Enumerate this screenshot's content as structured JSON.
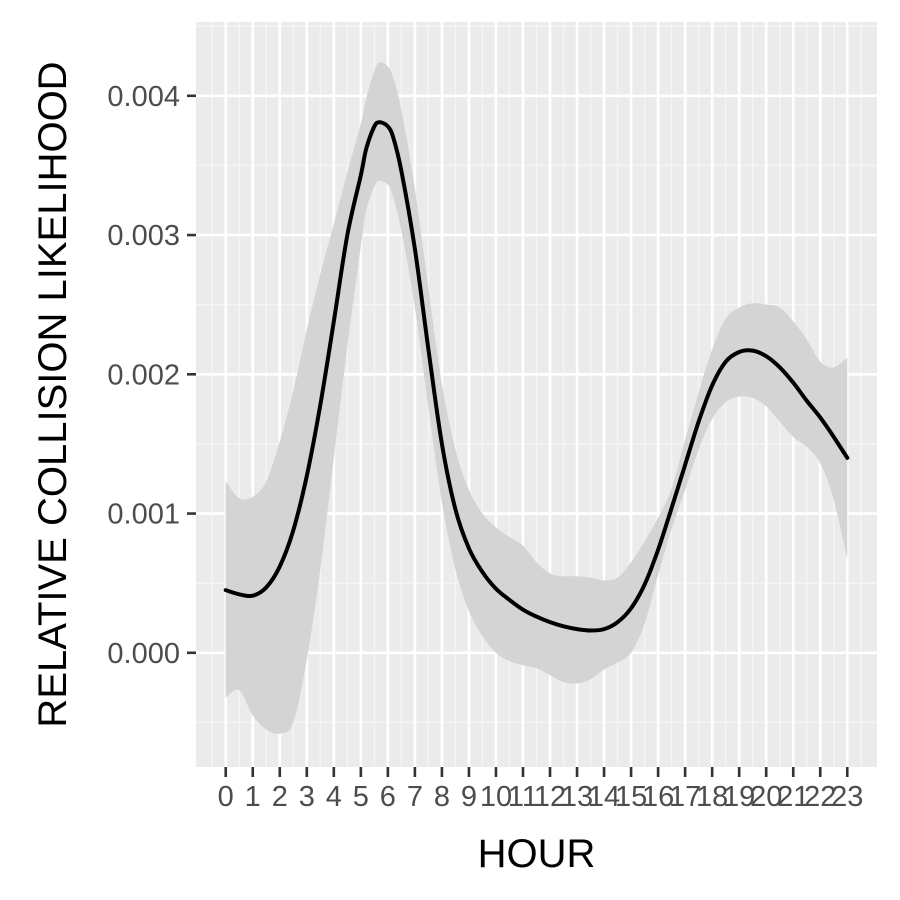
{
  "chart_data": {
    "type": "line",
    "xlabel": "HOUR",
    "ylabel": "RELATIVE COLLISION LIKELIHOOD",
    "x_ticks": [
      "0",
      "1",
      "2",
      "3",
      "4",
      "5",
      "6",
      "7",
      "8",
      "9",
      "10",
      "11",
      "12",
      "13",
      "14",
      "15",
      "16",
      "17",
      "18",
      "19",
      "20",
      "21",
      "22",
      "23"
    ],
    "y_ticks": [
      "0.000",
      "0.001",
      "0.002",
      "0.003",
      "0.004"
    ],
    "y_tick_values": [
      0.0,
      0.001,
      0.002,
      0.003,
      0.004
    ],
    "xlim": [
      -1.1,
      24.1
    ],
    "ylim": [
      -0.00082,
      0.00453
    ],
    "grid": true,
    "legend": "none",
    "colors": {
      "panel": "#ebebeb",
      "grid_major": "#ffffff",
      "grid_minor": "#f5f5f5",
      "band": "#d4d4d4",
      "line": "#000000",
      "tick": "#333333"
    },
    "series": [
      {
        "x": [
          0,
          0.5,
          1,
          1.5,
          2,
          2.5,
          3,
          3.5,
          4,
          4.5,
          5,
          5.2,
          5.5,
          5.7,
          6,
          6.2,
          6.5,
          7,
          7.5,
          8,
          8.5,
          9,
          9.5,
          10,
          10.5,
          11,
          11.5,
          12,
          12.5,
          13,
          13.5,
          14,
          14.5,
          15,
          15.5,
          16,
          16.5,
          17,
          17.5,
          18,
          18.5,
          19,
          19.5,
          20,
          20.5,
          21,
          21.5,
          22,
          22.5,
          23
        ],
        "y": [
          0.00045,
          0.00042,
          0.00041,
          0.00047,
          0.00062,
          0.00088,
          0.00127,
          0.00178,
          0.00238,
          0.003,
          0.00343,
          0.00362,
          0.00378,
          0.00381,
          0.00378,
          0.0037,
          0.00346,
          0.0029,
          0.00218,
          0.0015,
          0.00103,
          0.00075,
          0.00058,
          0.00046,
          0.00038,
          0.00031,
          0.00026,
          0.00022,
          0.00019,
          0.00017,
          0.00016,
          0.00017,
          0.00022,
          0.00032,
          0.00049,
          0.00074,
          0.00104,
          0.00135,
          0.00166,
          0.00192,
          0.00209,
          0.00216,
          0.00217,
          0.00213,
          0.00205,
          0.00194,
          0.00181,
          0.00169,
          0.00155,
          0.0014
        ],
        "lower": [
          -0.00032,
          -0.00027,
          -0.00045,
          -0.00055,
          -0.00058,
          -0.0005,
          -5e-05,
          0.0006,
          0.0014,
          0.0022,
          0.00292,
          0.00318,
          0.00335,
          0.00339,
          0.00336,
          0.00327,
          0.00303,
          0.00248,
          0.00176,
          0.00108,
          0.0006,
          0.0003,
          0.00012,
          0.0,
          -6e-05,
          -9e-05,
          -0.00011,
          -0.00016,
          -0.00021,
          -0.00022,
          -0.00019,
          -0.00012,
          -7e-05,
          0.0,
          0.00021,
          0.00056,
          0.00089,
          0.00117,
          0.00146,
          0.00168,
          0.0018,
          0.00184,
          0.00183,
          0.00177,
          0.00166,
          0.00155,
          0.00148,
          0.00136,
          0.0011,
          0.00067
        ],
        "upper": [
          0.00123,
          0.00111,
          0.00112,
          0.00123,
          0.00152,
          0.00188,
          0.00232,
          0.00272,
          0.00308,
          0.00345,
          0.0038,
          0.00398,
          0.00418,
          0.00424,
          0.00421,
          0.00413,
          0.0039,
          0.00333,
          0.00262,
          0.00193,
          0.00146,
          0.00117,
          0.001,
          0.0009,
          0.00083,
          0.00077,
          0.00065,
          0.00057,
          0.00055,
          0.00055,
          0.00054,
          0.00052,
          0.00054,
          0.00065,
          0.0008,
          0.00097,
          0.00118,
          0.00153,
          0.00187,
          0.00218,
          0.0024,
          0.00248,
          0.00251,
          0.0025,
          0.00248,
          0.00238,
          0.00225,
          0.00209,
          0.00205,
          0.00212
        ]
      }
    ]
  }
}
